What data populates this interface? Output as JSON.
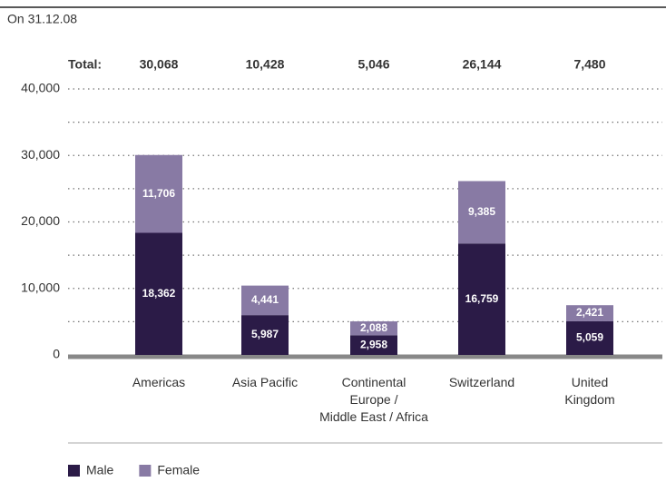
{
  "chart_data": {
    "type": "stacked_bar",
    "subtitle": "On 31.12.08",
    "categories": [
      "Americas",
      "Asia Pacific",
      "Continental\nEurope /\nMiddle East / Africa",
      "Switzerland",
      "United\nKingdom"
    ],
    "series": [
      {
        "name": "Male",
        "color": "#2b1b47",
        "values": [
          18362,
          5987,
          2958,
          16759,
          5059
        ],
        "value_labels": [
          "18,362",
          "5,987",
          "2,958",
          "16,759",
          "5,059"
        ]
      },
      {
        "name": "Female",
        "color": "#887aa4",
        "values": [
          11706,
          4441,
          2088,
          9385,
          2421
        ],
        "value_labels": [
          "11,706",
          "4,441",
          "2,088",
          "9,385",
          "2,421"
        ]
      }
    ],
    "totals": {
      "label": "Total:",
      "values": [
        30068,
        10428,
        5046,
        26144,
        7480
      ],
      "value_labels": [
        "30,068",
        "10,428",
        "5,046",
        "26,144",
        "7,480"
      ]
    },
    "ylim": [
      0,
      40000
    ],
    "yticks": [
      0,
      {
        "value": 10000,
        "label": "10,000"
      },
      {
        "value": 20000,
        "label": "20,000"
      },
      {
        "value": 30000,
        "label": "30,000"
      },
      {
        "value": 40000,
        "label": "40,000"
      }
    ],
    "minor_yticks": [
      5000,
      15000,
      25000,
      35000
    ],
    "grid": true,
    "legend": "bottom-left"
  }
}
